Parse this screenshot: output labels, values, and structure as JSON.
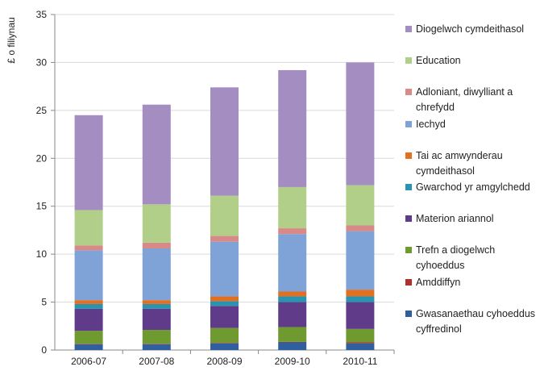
{
  "chart_data": {
    "type": "stacked_bar",
    "y_axis_label": "£ o filiynau",
    "categories": [
      "2006-07",
      "2007-08",
      "2008-09",
      "2009-10",
      "2010-11"
    ],
    "ylim": [
      0,
      35
    ],
    "yticks": [
      0,
      5,
      10,
      15,
      20,
      25,
      30,
      35
    ],
    "grid": true,
    "series": [
      {
        "name": "Gwasanaethau cyhoeddus cyffredinol",
        "color": "#2f5f9f",
        "values": [
          0.6,
          0.6,
          0.7,
          0.8,
          0.7
        ]
      },
      {
        "name": "Amddiffyn",
        "color": "#b03030",
        "values": [
          0.05,
          0.05,
          0.05,
          0.05,
          0.1
        ]
      },
      {
        "name": "Trefn a diogelwch cyhoeddus",
        "color": "#6f9a30",
        "values": [
          1.35,
          1.45,
          1.55,
          1.55,
          1.4
        ]
      },
      {
        "name": "Materion ariannol",
        "color": "#5f3b8a",
        "values": [
          2.3,
          2.2,
          2.3,
          2.6,
          2.8
        ]
      },
      {
        "name": "Gwarchod yr amgylchedd",
        "color": "#2a93b0",
        "values": [
          0.5,
          0.5,
          0.5,
          0.6,
          0.6
        ]
      },
      {
        "name": "Tai ac amwynderau cymdeithasol",
        "color": "#e27020",
        "values": [
          0.4,
          0.4,
          0.5,
          0.5,
          0.7
        ]
      },
      {
        "name": "Iechyd",
        "color": "#7fa3d6",
        "values": [
          5.2,
          5.4,
          5.7,
          6.0,
          6.1
        ]
      },
      {
        "name": "Adloniant, diwylliant a chrefydd",
        "color": "#d98a88",
        "values": [
          0.5,
          0.6,
          0.6,
          0.6,
          0.6
        ]
      },
      {
        "name": "Education",
        "color": "#b2cf8a",
        "values": [
          3.7,
          4.0,
          4.2,
          4.3,
          4.2
        ]
      },
      {
        "name": "Diogelwch cymdeithasol",
        "color": "#a48dc0",
        "values": [
          9.9,
          10.4,
          11.3,
          12.2,
          12.8
        ]
      }
    ]
  }
}
